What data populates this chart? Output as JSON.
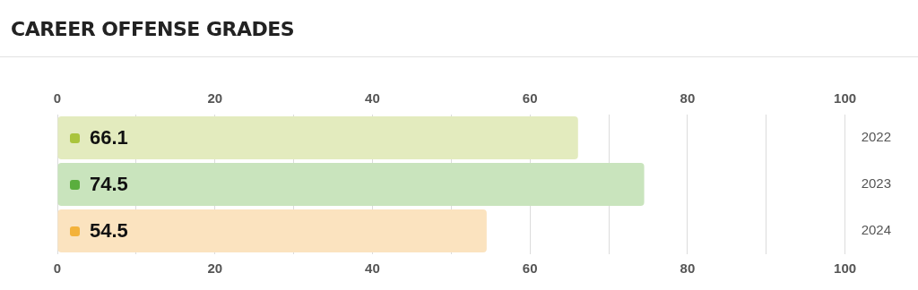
{
  "chart_data": {
    "type": "bar",
    "orientation": "horizontal",
    "title": "CAREER OFFENSE GRADES",
    "categories": [
      "2022",
      "2023",
      "2024"
    ],
    "values": [
      66.1,
      74.5,
      54.5
    ],
    "colors": [
      "#e3ebbe",
      "#c9e4bd",
      "#fbe3bf"
    ],
    "data_labels": true,
    "grid": "x",
    "legend": false,
    "xlim": [
      0,
      100
    ],
    "xticks": [
      0,
      {
        "value": 10,
        "label": null
      },
      20,
      {
        "value": 30,
        "label": null
      },
      40,
      {
        "value": 50,
        "label": null
      },
      60,
      {
        "value": 70,
        "label": null
      },
      80,
      {
        "value": 90,
        "label": null
      },
      100
    ],
    "x2lim": [
      0,
      100
    ],
    "x2ticks": [
      0,
      20,
      40,
      60,
      80,
      100
    ]
  }
}
